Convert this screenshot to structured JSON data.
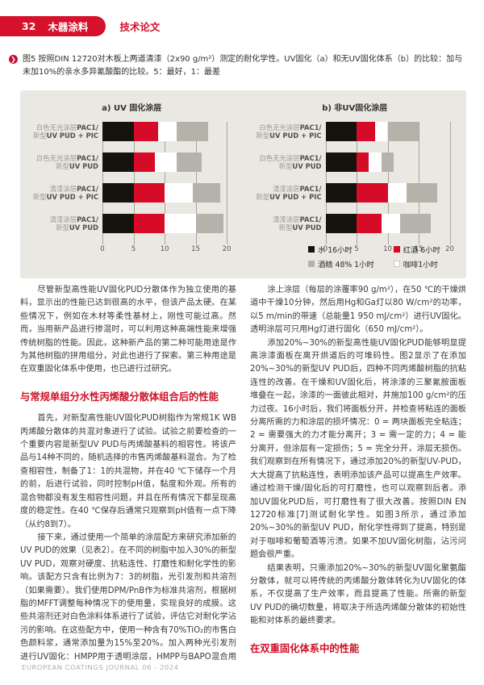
{
  "header": {
    "page_number": "32",
    "section_title": "木器涂料",
    "article_type": "技术论文"
  },
  "figure_caption": {
    "text": "图5 按照DIN 12720对木板上两道清漆（2x90 g/m²）测定的耐化学性。UV固化（a）和无UV固化体系（b）的比较：加与未加10%的亲水多异氰酸酯的比较。5：最好，1：最差"
  },
  "chart_data": {
    "type": "bar",
    "orientation": "horizontal",
    "stacked": true,
    "xlim": [
      0,
      20
    ],
    "xticks": [
      0,
      5,
      10,
      15,
      20
    ],
    "grid": true,
    "legend_position": "bottom-right",
    "stack_order_note": "segments drawn left-to-right: 水(黑), 红酒(红), 咖啡(白), 酒精(灰)",
    "legend": [
      {
        "name": "水 16小时",
        "color": "#16130f"
      },
      {
        "name": "红酒 6小时",
        "color": "#d60b28"
      },
      {
        "name": "酒精 48% 1小时",
        "color": "#b4b2a9"
      },
      {
        "name": "咖啡1小时",
        "color": "#ffffff"
      }
    ],
    "categories": [
      {
        "cn1": "白色无光涂层",
        "lat1": "PAC1/",
        "cn2": "新型",
        "lat2": "UV PUD + PIC"
      },
      {
        "cn1": "白色无光涂层",
        "lat1": "PAC1/",
        "cn2": "新型",
        "lat2": "UV PUD"
      },
      {
        "cn1": "清漆涂层",
        "lat1": "PAC1/",
        "cn2": "新型",
        "lat2": "UV PUD + PIC"
      },
      {
        "cn1": "清漆涂层",
        "lat1": "PAC1/",
        "cn2": "新型",
        "lat2": "UV PUD"
      }
    ],
    "panels": [
      {
        "title": "a) UV 固化涂层",
        "series": [
          {
            "name": "水 16小时",
            "color": "#16130f",
            "values": [
              5,
              5,
              5,
              5
            ]
          },
          {
            "name": "红酒 6小时",
            "color": "#d60b28",
            "values": [
              4,
              3.5,
              5,
              5
            ]
          },
          {
            "name": "咖啡1小时",
            "color": "#ffffff",
            "values": [
              3,
              3.5,
              4.5,
              5
            ]
          },
          {
            "name": "酒精 48% 1小时",
            "color": "#b4b2a9",
            "values": [
              5,
              4,
              4.5,
              4.5
            ]
          }
        ]
      },
      {
        "title": "b) 非UV固化涂层",
        "series": [
          {
            "name": "水 16小时",
            "color": "#16130f",
            "values": [
              5,
              5,
              5,
              5
            ]
          },
          {
            "name": "红酒 6小时",
            "color": "#d60b28",
            "values": [
              3,
              2,
              5,
              4
            ]
          },
          {
            "name": "咖啡1小时",
            "color": "#ffffff",
            "values": [
              2,
              2,
              3,
              3
            ]
          },
          {
            "name": "酒精 48% 1小时",
            "color": "#b4b2a9",
            "values": [
              5,
              2,
              5,
              5
            ]
          }
        ]
      }
    ]
  },
  "article": {
    "left_column": [
      {
        "type": "paragraph",
        "text": "尽管新型高性能UV固化PUD分散体作为独立使用的基料，显示出的性能已达到很高的水平，但该产品太硬。在某些情况下，例如在木材等柔性基材上，刚性可能过高。然而，当用新产品进行掺混时，可以利用这种高端性能来增强传统树脂的性能。因此，这种新产品的第二种可能用途是作为其他树脂的拼用组分，对此也进行了探索。第三种用途是在双重固化体系中使用，也已进行过研究。"
      },
      {
        "type": "heading",
        "text": "与常规单组分水性丙烯酸分散体组合后的性能"
      },
      {
        "type": "paragraph",
        "text": "首先，对新型高性能UV固化PUD树脂作为常规1K WB丙烯酸分散体的共混对象进行了试验。试验之前要检查的一个重要内容是新型UV PUD与丙烯酸基料的相容性。将该产品与14种不同的，随机选择的市售丙烯酸基料混合。为了检查相容性，制备了1：1的共混物，并在40 ℃下储存一个月的前，后进行试验，同时控制pH值，黏度和外观。所有的混合物都没有发生相容性问题，并且在所有情况下都呈现高度的稳定性。在40 ℃保存后通常只观察到pH值有一点下降（从约8到7）。"
      },
      {
        "type": "paragraph",
        "text": "接下来，通过使用一个简单的涂层配方来研究添加新的UV PUD的效果（见表2）。在不同的树脂中加入30%的新型UV PUD，观察对硬度、抗粘连性、打磨性和耐化学性的影响。该配方只含有比例为7：3的树脂，光引发剂和共溶剂（如果需要）。我们使用DPM/PnB作为标准共溶剂，根据树脂的MFFT调整每种情况下的使用量，实现良好的成膜。这些共溶剂还对白色涂料体系进行了试验，评估它对耐化学沾污的影响。在这些配方中，使用一种含有70%TiO₂的市售白色颜料浆，通常添加量为15%至20%。加入两种光引发剂进行UV固化：HMPP用于透明涂层，HMPP与BAPO混合用于着色涂层。"
      }
    ],
    "right_column": [
      {
        "type": "paragraph",
        "text": "涂上涂层（每层的涂覆率90 g/m²），在50 ℃的干燥烘道中干燥10分钟，然后用Hg和Ga灯以80 W/cm²的功率，以5 m/min的带速（总能量1 950 mJ/cm²）进行UV固化。透明涂层可只用Hg灯进行固化（650 mJ/cm²）。"
      },
      {
        "type": "paragraph",
        "text": "添加20%~30%的新型高性能UV固化PUD能够明显提高涂漆面板在离开烘道后的可堆码性。图2显示了在添加20%~30%的新型UV PUD后，四种不同丙烯酸树脂的抗粘连性的改善。在干燥和UV固化后，将涂漆的三聚氰胺面板堆叠在一起，涂漆的一面彼此相对，并施加100 g/cm²的压力过夜。16小时后，我们将面板分开，并检查将粘连的面板分离所需的力和涂层的损坏情况：0 = 两块面板完全粘连；2 = 需要强大的力才能分离开；3 = 需一定的力；4 = 能分离开，但涂层有一定损伤；5 = 完全分开，涂层无损伤。我们观察到在所有情况下，通过添加20%的新型UV-PUD，大大提高了抗粘连性，表明添加该产品可以提高生产效率。通过检测干燥/固化后的可打磨性，也可以观察到后者。添加UV固化PUD后，可打磨性有了很大改善。按照DIN EN 12720标准[7]测试耐化学性。如图3所示，通过添加20%~30%的新型UV PUD，耐化学性得到了提高，特别是对于咖啡和葡萄酒等污渍。如果不加UV固化树脂，沾污问题会很严重。"
      },
      {
        "type": "paragraph",
        "text": "结果表明，只需添加20%~30%的新型UV固化聚氨酯分散体，就可以将传统的丙烯酸分散体转化为UV固化的体系，不仅提高了生产效率，而且提高了性能。所需的新型UV PUD的确切数量，将取决于所选丙烯酸分散体的初始性能和对体系的最终要求。"
      },
      {
        "type": "heading",
        "text": "在双重固化体系中的性能"
      }
    ]
  },
  "footer": {
    "text": "EUROPEAN COATINGS JOURNAL 06 - 2024"
  },
  "colors": {
    "accent_red": "#d5112b",
    "chart_background": "#eae8e3",
    "bar_black": "#16130f",
    "bar_red": "#d60b28",
    "bar_gray": "#b4b2a9",
    "bar_white": "#ffffff",
    "gridline": "#a7a59b"
  }
}
